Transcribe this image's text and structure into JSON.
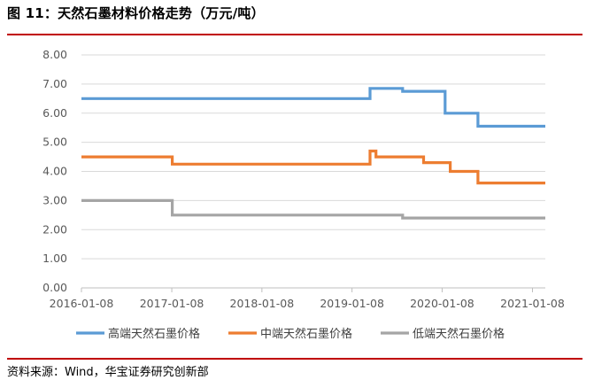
{
  "figure_title": "图 11：天然石墨材料价格走势（万元/吨）",
  "source": "资料来源：Wind，华宝证券研究创新部",
  "colors": {
    "rule": "#c00000",
    "axis": "#bfbfbf",
    "grid": "#d9d9d9"
  },
  "chart_data": {
    "type": "line",
    "step": true,
    "title": "",
    "xlabel": "",
    "ylabel": "",
    "ylim": [
      0,
      8
    ],
    "yticks": [
      0.0,
      1.0,
      2.0,
      3.0,
      4.0,
      5.0,
      6.0,
      7.0,
      8.0
    ],
    "xticks": [
      "2016-01-08",
      "2017-01-08",
      "2018-01-08",
      "2019-01-08",
      "2020-01-08",
      "2021-01-08"
    ],
    "xlim": [
      "2016-01-08",
      "2021-03-01"
    ],
    "grid": true,
    "legend": "bottom",
    "series": [
      {
        "name": "高端天然石墨价格",
        "color": "#5b9bd5",
        "points": [
          [
            "2016-01-08",
            6.5
          ],
          [
            "2019-03-22",
            6.5
          ],
          [
            "2019-03-22",
            6.85
          ],
          [
            "2019-08-01",
            6.85
          ],
          [
            "2019-08-01",
            6.75
          ],
          [
            "2020-01-20",
            6.75
          ],
          [
            "2020-01-20",
            6.0
          ],
          [
            "2020-06-01",
            6.0
          ],
          [
            "2020-06-01",
            5.55
          ],
          [
            "2021-03-01",
            5.55
          ]
        ]
      },
      {
        "name": "中端天然石墨价格",
        "color": "#ed7d31",
        "points": [
          [
            "2016-01-08",
            4.5
          ],
          [
            "2017-01-10",
            4.5
          ],
          [
            "2017-01-10",
            4.25
          ],
          [
            "2019-03-22",
            4.25
          ],
          [
            "2019-03-22",
            4.7
          ],
          [
            "2019-04-15",
            4.7
          ],
          [
            "2019-04-15",
            4.5
          ],
          [
            "2019-10-25",
            4.5
          ],
          [
            "2019-10-25",
            4.3
          ],
          [
            "2020-02-10",
            4.3
          ],
          [
            "2020-02-10",
            4.0
          ],
          [
            "2020-06-01",
            4.0
          ],
          [
            "2020-06-01",
            3.6
          ],
          [
            "2021-03-01",
            3.6
          ]
        ]
      },
      {
        "name": "低端天然石墨价格",
        "color": "#a5a5a5",
        "points": [
          [
            "2016-01-08",
            3.0
          ],
          [
            "2017-01-10",
            3.0
          ],
          [
            "2017-01-10",
            2.5
          ],
          [
            "2019-08-01",
            2.5
          ],
          [
            "2019-08-01",
            2.4
          ],
          [
            "2021-03-01",
            2.4
          ]
        ]
      }
    ]
  }
}
